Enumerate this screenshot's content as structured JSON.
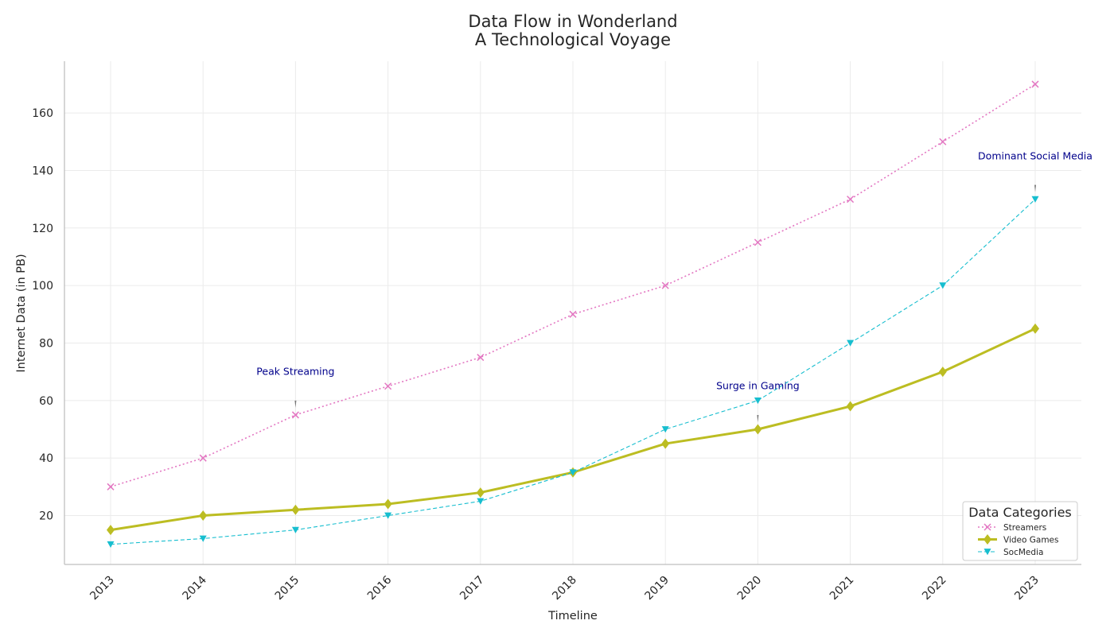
{
  "chart_data": {
    "type": "line",
    "title_line1": "Data Flow in Wonderland",
    "title_line2": "A Technological Voyage",
    "xlabel": "Timeline",
    "ylabel": "Internet Data (in PB)",
    "categories": [
      "2013",
      "2014",
      "2015",
      "2016",
      "2017",
      "2018",
      "2019",
      "2020",
      "2021",
      "2022",
      "2023"
    ],
    "ylim": [
      3,
      178
    ],
    "yticks": [
      20,
      40,
      60,
      80,
      100,
      120,
      140,
      160
    ],
    "grid": true,
    "series": [
      {
        "name": "Streamers",
        "values": [
          30,
          40,
          55,
          65,
          75,
          90,
          100,
          115,
          130,
          150,
          170
        ],
        "color": "#e377c2",
        "linestyle": "dotted",
        "marker": "x-icon"
      },
      {
        "name": "Video Games",
        "values": [
          15,
          20,
          22,
          24,
          28,
          35,
          45,
          50,
          58,
          70,
          85
        ],
        "color": "#bcbd22",
        "linestyle": "solid",
        "marker": "diamond-icon"
      },
      {
        "name": "SocMedia",
        "values": [
          10,
          12,
          15,
          20,
          25,
          35,
          50,
          60,
          80,
          100,
          130
        ],
        "color": "#17becf",
        "linestyle": "dashed",
        "marker": "triangle-down-icon"
      }
    ],
    "legend": {
      "title": "Data Categories",
      "placement": "lower-right"
    },
    "annotations": [
      {
        "text": "Peak Streaming",
        "x": "2015",
        "y": 55,
        "text_y": 70
      },
      {
        "text": "Surge in Gaming",
        "x": "2020",
        "y": 50,
        "text_y": 65
      },
      {
        "text": "Dominant Social Media",
        "x": "2023",
        "y": 130,
        "text_y": 145
      }
    ]
  }
}
